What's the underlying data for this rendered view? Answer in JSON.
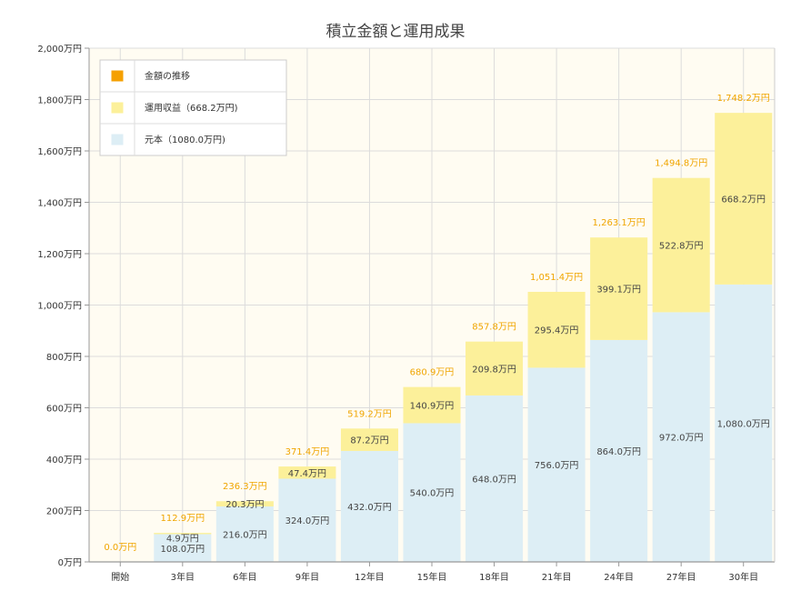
{
  "chart_data": {
    "type": "bar",
    "stacked": true,
    "title": "積立金額と運用成果",
    "xlabel": "",
    "ylabel": "",
    "ylim": [
      0,
      2000
    ],
    "grid": true,
    "legend_position": "top-left",
    "categories": [
      "開始",
      "3年目",
      "6年目",
      "9年目",
      "12年目",
      "15年目",
      "18年目",
      "21年目",
      "24年目",
      "27年目",
      "30年目"
    ],
    "y_ticks": [
      "0万円",
      "200万円",
      "400万円",
      "600万円",
      "800万円",
      "1,000万円",
      "1,200万円",
      "1,400万円",
      "1,600万円",
      "1,800万円",
      "2,000万円"
    ],
    "y_tick_values": [
      0,
      200,
      400,
      600,
      800,
      1000,
      1200,
      1400,
      1600,
      1800,
      2000
    ],
    "series": [
      {
        "name": "元本（1080.0万円)",
        "color": "#ddeef5",
        "values": [
          0,
          108.0,
          216.0,
          324.0,
          432.0,
          540.0,
          648.0,
          756.0,
          864.0,
          972.0,
          1080.0
        ],
        "labels": [
          "",
          "108.0万円",
          "216.0万円",
          "324.0万円",
          "432.0万円",
          "540.0万円",
          "648.0万円",
          "756.0万円",
          "864.0万円",
          "972.0万円",
          "1,080.0万円"
        ]
      },
      {
        "name": "運用収益（668.2万円)",
        "color": "#fcf09a",
        "values": [
          0,
          4.9,
          20.3,
          47.4,
          87.2,
          140.9,
          209.8,
          295.4,
          399.1,
          522.8,
          668.2
        ],
        "labels": [
          "",
          "4.9万円",
          "20.3万円",
          "47.4万円",
          "87.2万円",
          "140.9万円",
          "209.8万円",
          "295.4万円",
          "399.1万円",
          "522.8万円",
          "668.2万円"
        ]
      }
    ],
    "total_series": {
      "name": "金額の推移",
      "color": "#f5a000",
      "values": [
        0.0,
        112.9,
        236.3,
        371.4,
        519.2,
        680.9,
        857.8,
        1051.4,
        1263.1,
        1494.8,
        1748.2
      ],
      "labels": [
        "0.0万円",
        "112.9万円",
        "236.3万円",
        "371.4万円",
        "519.2万円",
        "680.9万円",
        "857.8万円",
        "1,051.4万円",
        "1,263.1万円",
        "1,494.8万円",
        "1,748.2万円"
      ]
    },
    "legend": [
      {
        "label": "金額の推移",
        "color": "#f5a000"
      },
      {
        "label": "運用収益（668.2万円)",
        "color": "#fcf09a"
      },
      {
        "label": "元本（1080.0万円)",
        "color": "#ddeef5"
      }
    ]
  }
}
